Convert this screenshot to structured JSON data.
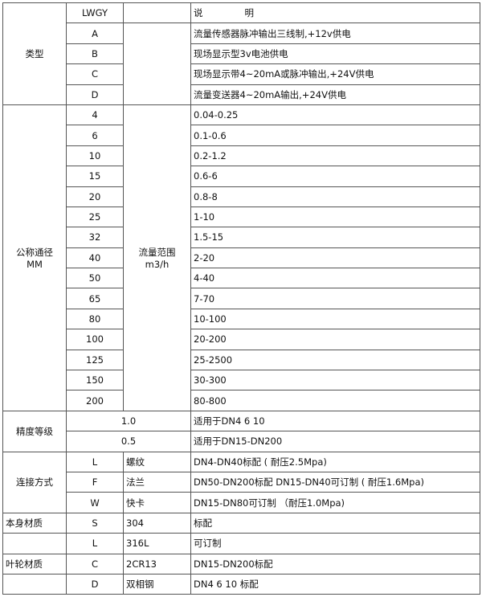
{
  "header": {
    "code": "LWGY",
    "desc_a": "说",
    "desc_b": "明"
  },
  "type": {
    "label": "类型",
    "rows": [
      {
        "code": "A",
        "desc": "流量传感器脉冲输出三线制,+12v供电"
      },
      {
        "code": "B",
        "desc": "现场显示型3v电池供电"
      },
      {
        "code": "C",
        "desc": "现场显示带4~20mA或脉冲输出,+24V供电"
      },
      {
        "code": "D",
        "desc": "流量变送器4~20mA输出,+24V供电"
      }
    ]
  },
  "diameter": {
    "label_a": "公称通径",
    "label_b": "MM",
    "flow_label_a": "流量范围",
    "flow_label_b": "m3/h",
    "rows": [
      {
        "code": "4",
        "desc": "0.04-0.25"
      },
      {
        "code": "6",
        "desc": "0.1-0.6"
      },
      {
        "code": "10",
        "desc": "0.2-1.2"
      },
      {
        "code": "15",
        "desc": "0.6-6"
      },
      {
        "code": "20",
        "desc": "0.8-8"
      },
      {
        "code": "25",
        "desc": "1-10"
      },
      {
        "code": "32",
        "desc": "1.5-15"
      },
      {
        "code": "40",
        "desc": "2-20"
      },
      {
        "code": "50",
        "desc": "4-40"
      },
      {
        "code": "65",
        "desc": "7-70"
      },
      {
        "code": "80",
        "desc": "10-100"
      },
      {
        "code": "100",
        "desc": "20-200"
      },
      {
        "code": "125",
        "desc": "25-2500"
      },
      {
        "code": "150",
        "desc": "30-300"
      },
      {
        "code": "200",
        "desc": "80-800"
      }
    ]
  },
  "accuracy": {
    "label": "精度等级",
    "rows": [
      {
        "code": "1.0",
        "desc": "适用于DN4  6  10"
      },
      {
        "code": "0.5",
        "desc": "适用于DN15-DN200"
      }
    ]
  },
  "connection": {
    "label": "连接方式",
    "rows": [
      {
        "code": "L",
        "name": "螺纹",
        "desc": "DN4-DN40标配 ( 耐压2.5Mpa)"
      },
      {
        "code": "F",
        "name": "法兰",
        "desc": "DN50-DN200标配 DN15-DN40可订制 ( 耐压1.6Mpa)"
      },
      {
        "code": "W",
        "name": "快卡",
        "desc": "DN15-DN80可订制 （耐压1.0Mpa)"
      }
    ]
  },
  "body_material": {
    "label": "本身材质",
    "rows": [
      {
        "code": "S",
        "name": "304",
        "desc": "标配"
      },
      {
        "code": "L",
        "name": "316L",
        "desc": "可订制"
      }
    ]
  },
  "impeller_material": {
    "label": "叶轮材质",
    "rows": [
      {
        "code": "C",
        "name": "2CR13",
        "desc": "DN15-DN200标配"
      },
      {
        "code": "D",
        "name": "双相钢",
        "desc": "DN4 6 10 标配"
      }
    ]
  }
}
